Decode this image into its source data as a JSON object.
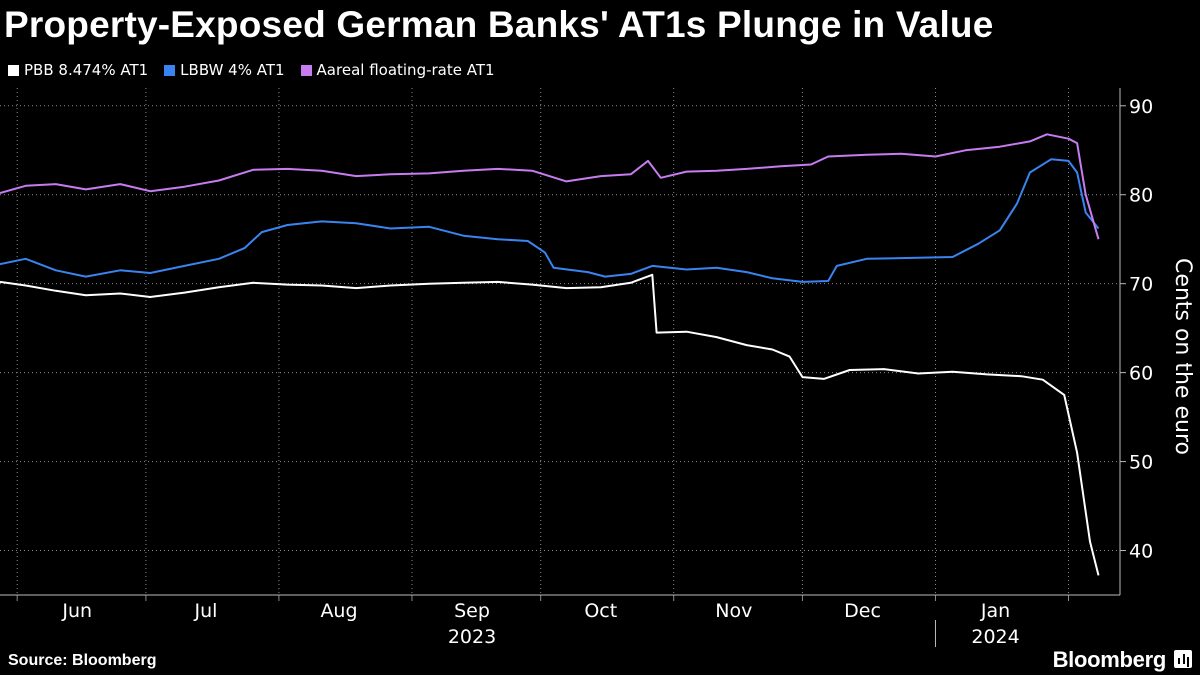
{
  "header": {
    "title": "Property-Exposed German Banks' AT1s Plunge in Value"
  },
  "footer": {
    "source": "Source: Bloomberg",
    "brand": "Bloomberg"
  },
  "chart_data": {
    "type": "line",
    "title": "Property-Exposed German Banks' AT1s Plunge in Value",
    "xlabel": "",
    "ylabel": "Cents on the euro",
    "ylim": [
      35,
      92
    ],
    "yticks": [
      40,
      50,
      60,
      70,
      80,
      90
    ],
    "x_range": [
      "2023-05-28",
      "2024-02-13"
    ],
    "month_ticks": [
      "2023-06-01",
      "2023-07-01",
      "2023-08-01",
      "2023-09-01",
      "2023-10-01",
      "2023-11-01",
      "2023-12-01",
      "2024-01-01",
      "2024-02-01"
    ],
    "month_labels": [
      {
        "label": "Jun",
        "date": "2023-06-15"
      },
      {
        "label": "Jul",
        "date": "2023-07-15"
      },
      {
        "label": "Aug",
        "date": "2023-08-15"
      },
      {
        "label": "Sep",
        "date": "2023-09-15"
      },
      {
        "label": "Oct",
        "date": "2023-10-15"
      },
      {
        "label": "Nov",
        "date": "2023-11-15"
      },
      {
        "label": "Dec",
        "date": "2023-12-15"
      },
      {
        "label": "Jan",
        "date": "2024-01-15"
      }
    ],
    "year_labels": [
      {
        "label": "2023",
        "date": "2023-09-15"
      },
      {
        "label": "2024",
        "date": "2024-01-15"
      }
    ],
    "year_divider": "2024-01-01",
    "grid": true,
    "legend_position": "top-left",
    "series": [
      {
        "name": "PBB 8.474% AT1",
        "color": "#ffffff",
        "points": [
          [
            "2023-05-28",
            70.2
          ],
          [
            "2023-06-03",
            69.8
          ],
          [
            "2023-06-10",
            69.2
          ],
          [
            "2023-06-17",
            68.7
          ],
          [
            "2023-06-25",
            68.9
          ],
          [
            "2023-07-02",
            68.5
          ],
          [
            "2023-07-10",
            69.0
          ],
          [
            "2023-07-18",
            69.6
          ],
          [
            "2023-07-26",
            70.1
          ],
          [
            "2023-08-03",
            69.9
          ],
          [
            "2023-08-11",
            69.8
          ],
          [
            "2023-08-19",
            69.5
          ],
          [
            "2023-08-27",
            69.8
          ],
          [
            "2023-09-05",
            70.0
          ],
          [
            "2023-09-13",
            70.1
          ],
          [
            "2023-09-21",
            70.2
          ],
          [
            "2023-09-29",
            69.9
          ],
          [
            "2023-10-07",
            69.5
          ],
          [
            "2023-10-15",
            69.6
          ],
          [
            "2023-10-22",
            70.1
          ],
          [
            "2023-10-27",
            71.0
          ],
          [
            "2023-10-28",
            64.5
          ],
          [
            "2023-11-04",
            64.6
          ],
          [
            "2023-11-11",
            64.0
          ],
          [
            "2023-11-18",
            63.1
          ],
          [
            "2023-11-24",
            62.6
          ],
          [
            "2023-11-28",
            61.8
          ],
          [
            "2023-12-01",
            59.5
          ],
          [
            "2023-12-06",
            59.3
          ],
          [
            "2023-12-12",
            60.3
          ],
          [
            "2023-12-20",
            60.4
          ],
          [
            "2023-12-28",
            59.9
          ],
          [
            "2024-01-05",
            60.1
          ],
          [
            "2024-01-13",
            59.8
          ],
          [
            "2024-01-21",
            59.6
          ],
          [
            "2024-01-26",
            59.2
          ],
          [
            "2024-01-31",
            57.5
          ],
          [
            "2024-02-03",
            51.0
          ],
          [
            "2024-02-06",
            41.0
          ],
          [
            "2024-02-08",
            37.2
          ]
        ]
      },
      {
        "name": "LBBW 4% AT1",
        "color": "#3a84f0",
        "points": [
          [
            "2023-05-28",
            72.2
          ],
          [
            "2023-06-03",
            72.8
          ],
          [
            "2023-06-10",
            71.5
          ],
          [
            "2023-06-17",
            70.8
          ],
          [
            "2023-06-25",
            71.5
          ],
          [
            "2023-07-02",
            71.2
          ],
          [
            "2023-07-10",
            72.0
          ],
          [
            "2023-07-18",
            72.8
          ],
          [
            "2023-07-24",
            74.0
          ],
          [
            "2023-07-28",
            75.8
          ],
          [
            "2023-08-03",
            76.6
          ],
          [
            "2023-08-11",
            77.0
          ],
          [
            "2023-08-19",
            76.8
          ],
          [
            "2023-08-27",
            76.2
          ],
          [
            "2023-09-05",
            76.4
          ],
          [
            "2023-09-13",
            75.4
          ],
          [
            "2023-09-21",
            75.0
          ],
          [
            "2023-09-28",
            74.8
          ],
          [
            "2023-10-02",
            73.5
          ],
          [
            "2023-10-04",
            71.8
          ],
          [
            "2023-10-12",
            71.3
          ],
          [
            "2023-10-16",
            70.8
          ],
          [
            "2023-10-22",
            71.1
          ],
          [
            "2023-10-27",
            72.0
          ],
          [
            "2023-11-04",
            71.6
          ],
          [
            "2023-11-11",
            71.8
          ],
          [
            "2023-11-18",
            71.3
          ],
          [
            "2023-11-24",
            70.6
          ],
          [
            "2023-12-01",
            70.2
          ],
          [
            "2023-12-07",
            70.3
          ],
          [
            "2023-12-09",
            72.0
          ],
          [
            "2023-12-16",
            72.8
          ],
          [
            "2024-01-05",
            73.0
          ],
          [
            "2024-01-11",
            74.5
          ],
          [
            "2024-01-16",
            76.0
          ],
          [
            "2024-01-20",
            79.0
          ],
          [
            "2024-01-23",
            82.5
          ],
          [
            "2024-01-28",
            84.0
          ],
          [
            "2024-02-01",
            83.8
          ],
          [
            "2024-02-03",
            82.5
          ],
          [
            "2024-02-05",
            78.0
          ],
          [
            "2024-02-08",
            76.2
          ]
        ]
      },
      {
        "name": "Aareal floating-rate AT1",
        "color": "#c77cf0",
        "points": [
          [
            "2023-05-28",
            80.2
          ],
          [
            "2023-06-03",
            81.0
          ],
          [
            "2023-06-10",
            81.2
          ],
          [
            "2023-06-17",
            80.6
          ],
          [
            "2023-06-25",
            81.2
          ],
          [
            "2023-07-02",
            80.4
          ],
          [
            "2023-07-10",
            80.9
          ],
          [
            "2023-07-18",
            81.6
          ],
          [
            "2023-07-26",
            82.8
          ],
          [
            "2023-08-03",
            82.9
          ],
          [
            "2023-08-11",
            82.7
          ],
          [
            "2023-08-19",
            82.1
          ],
          [
            "2023-08-27",
            82.3
          ],
          [
            "2023-09-05",
            82.4
          ],
          [
            "2023-09-13",
            82.7
          ],
          [
            "2023-09-21",
            82.9
          ],
          [
            "2023-09-29",
            82.7
          ],
          [
            "2023-10-07",
            81.5
          ],
          [
            "2023-10-15",
            82.1
          ],
          [
            "2023-10-22",
            82.3
          ],
          [
            "2023-10-26",
            83.8
          ],
          [
            "2023-10-29",
            81.9
          ],
          [
            "2023-11-04",
            82.6
          ],
          [
            "2023-11-11",
            82.7
          ],
          [
            "2023-11-18",
            82.9
          ],
          [
            "2023-11-26",
            83.2
          ],
          [
            "2023-12-03",
            83.4
          ],
          [
            "2023-12-07",
            84.3
          ],
          [
            "2023-12-16",
            84.5
          ],
          [
            "2023-12-24",
            84.6
          ],
          [
            "2024-01-01",
            84.3
          ],
          [
            "2024-01-08",
            85.0
          ],
          [
            "2024-01-16",
            85.4
          ],
          [
            "2024-01-23",
            86.0
          ],
          [
            "2024-01-27",
            86.8
          ],
          [
            "2024-02-01",
            86.3
          ],
          [
            "2024-02-03",
            85.8
          ],
          [
            "2024-02-05",
            80.0
          ],
          [
            "2024-02-08",
            75.0
          ]
        ]
      }
    ]
  }
}
